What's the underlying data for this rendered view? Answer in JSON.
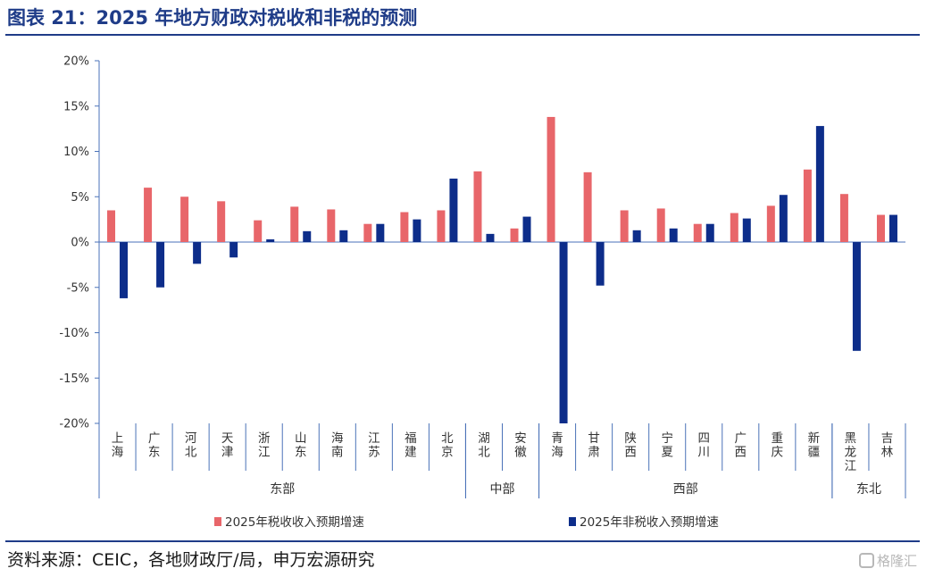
{
  "page": {
    "title": "图表 21：2025 年地方财政对税收和非税的预测",
    "source": "资料来源：CEIC，各地财政厅/局，申万宏源研究",
    "watermark": "格隆汇"
  },
  "colors": {
    "title": "#1f3c88",
    "tax_series": "#e8666a",
    "nontax_series": "#0d2d8a",
    "axis": "#4a72b8"
  },
  "chart_data": {
    "type": "bar",
    "categories": [
      "上海",
      "广东",
      "河北",
      "天津",
      "浙江",
      "山东",
      "海南",
      "江苏",
      "福建",
      "北京",
      "湖北",
      "安徽",
      "青海",
      "甘肃",
      "陕西",
      "宁夏",
      "四川",
      "广西",
      "重庆",
      "新疆",
      "黑龙江",
      "吉林"
    ],
    "groups": [
      {
        "name": "东部",
        "start": 0,
        "end": 9
      },
      {
        "name": "中部",
        "start": 10,
        "end": 11
      },
      {
        "name": "西部",
        "start": 12,
        "end": 19
      },
      {
        "name": "东北",
        "start": 20,
        "end": 21
      }
    ],
    "series": [
      {
        "name": "2025年税收收入预期增速",
        "values": [
          3.5,
          6.0,
          5.0,
          4.5,
          2.4,
          3.9,
          3.6,
          2.0,
          3.3,
          3.5,
          7.8,
          1.5,
          13.8,
          7.7,
          3.5,
          3.7,
          2.0,
          3.2,
          4.0,
          8.0,
          5.3,
          3.0
        ]
      },
      {
        "name": "2025年非税收入预期增速",
        "values": [
          -6.2,
          -5.0,
          -2.4,
          -1.7,
          0.3,
          1.2,
          1.3,
          2.0,
          2.5,
          7.0,
          0.9,
          2.8,
          -20.0,
          -4.8,
          1.3,
          1.5,
          2.0,
          2.6,
          5.2,
          12.8,
          -12.0,
          3.0
        ]
      }
    ],
    "yticks": [
      "20%",
      "15%",
      "10%",
      "5%",
      "0%",
      "-5%",
      "-10%",
      "-15%",
      "-20%"
    ],
    "ylim": [
      -20,
      20
    ],
    "unit": "%",
    "grid": false,
    "legend": "bottom"
  }
}
